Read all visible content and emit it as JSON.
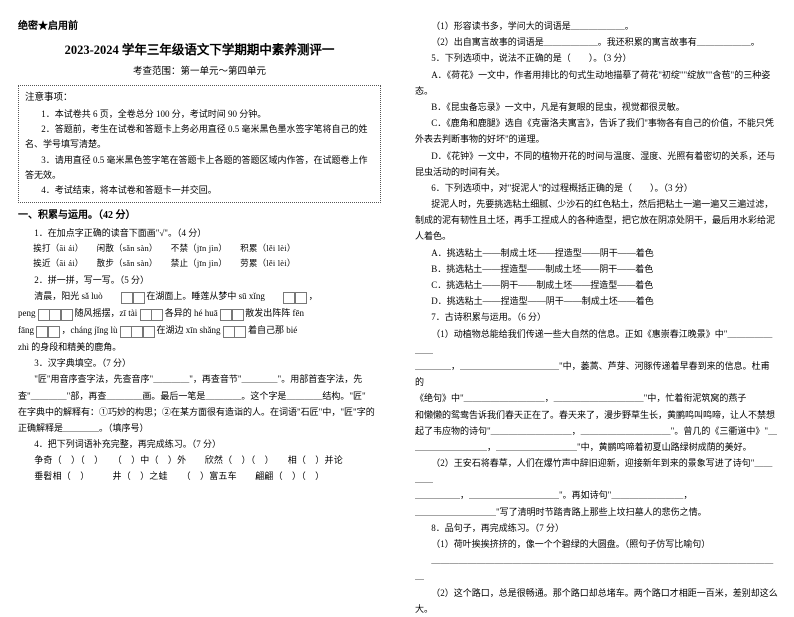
{
  "header": {
    "secret": "绝密★启用前"
  },
  "title": "2023-2024 学年三年级语文下学期期中素养测评一",
  "subtitle": "考查范围：第一单元～第四单元",
  "notice": {
    "title": "注意事项：",
    "items": [
      "1．本试卷共 6 页，全卷总分 100 分，考试时间 90 分钟。",
      "2．答题前，考生在试卷和答题卡上务必用直径 0.5 毫米黑色墨水签字笔将自己的姓名、学号填写清楚。",
      "3．请用直径 0.5 毫米黑色签字笔在答题卡上各题的答题区域内作答，在试题卷上作答无效。",
      "4．考试结束，将本试卷和答题卡一并交回。"
    ]
  },
  "section1": {
    "head": "一、积累与运用。（42 分）",
    "q1": {
      "title": "1．在加点字正确的读音下面画\"√\"。（4 分）",
      "row1": "挨打（āi  ái）　　闲散（sǎn  sàn）　　不禁（jīn  jìn）　　积累（lěi  lèi）",
      "row2": "挨近（āi  ái）　　散步（sǎn  sàn）　　禁止（jīn  jìn）　　劳累（lěi  lèi）"
    },
    "q2": {
      "title": "2．拼一拼，写一写。（5 分）",
      "l1a": "清晨，阳光 sǎ luò ",
      "l1b": " 在湖面上。睡莲从梦中 sū xǐng ",
      "l1c": "，",
      "l2a": "peng ",
      "l2b": " 随风摇摆，zī tài ",
      "l2c": " 各异的 hé huā ",
      "l2d": " 散发出阵阵 fēn",
      "l3a": "fāng ",
      "l3b": "，cháng jǐng lù ",
      "l3c": " 在湖边 xīn shǎng ",
      "l3d": " 着自己那 bié",
      "l4": "zhì 的身段和精美的鹿角。"
    },
    "q3": {
      "title": "3．汉字典填空。（7 分）",
      "l1": "\"匠\"用音序查字法，先查音序\"＿＿＿＿\"，再查音节\"＿＿＿＿\"。用部首查字法，先",
      "l2": "查\"＿＿＿＿\"部，再查＿＿＿＿画。最后一笔是＿＿＿＿。这个字是＿＿＿＿结构。\"匠\"",
      "l3": "在字典中的解释有：①巧妙的构思；②在某方面很有造诣的人。在词语\"石匠\"中，\"匠\"字的正确解释是＿＿＿＿。（填序号）"
    },
    "q4": {
      "title": "4．把下列词语补充完整，再完成练习。（7 分）",
      "row1": "争奇（　）（　）　　（　）中（　）外　　欣然（　）（　）　　相（　）并论",
      "row2": "垂髫相（　）　　　井（　）之蛙　　（　）富五车　　翩翩（　）（　）"
    }
  },
  "section1b": {
    "r1": "（1）形容读书多，学问大的词语是＿＿＿＿＿＿。",
    "r2": "（2）出自寓言故事的词语是＿＿＿＿＿＿。我还积累的寓言故事有＿＿＿＿＿＿。",
    "q5": {
      "title": "5．下列选项中，说法不正确的是（　　）。（3 分）",
      "a": "A．《荷花》一文中，作者用排比的句式生动地描摹了荷花\"初绽\"\"绽放\"\"含苞\"的三种姿态。",
      "b": "B．《昆虫备忘录》一文中，凡是有复眼的昆虫，视觉都很灵敏。",
      "c": "C．《鹿角和鹿腿》选自《克雷洛夫寓言》，告诉了我们\"事物各有自己的价值，不能只凭外表去判断事物的好坏\"的道理。",
      "d": "D．《花钟》一文中，不同的植物开花的时间与温度、湿度、光照有着密切的关系，还与昆虫活动的时间有关。"
    },
    "q6": {
      "title": "6．下列选项中，对\"捉泥人\"的过程概括正确的是（　　）。（3 分）",
      "intro": "捉泥人时，先要挑选粘土细腻、少沙石的红色粘土，然后把粘土一遍一遍又三遍过滤，制成的泥有韧性且土坯，再手工捏成人的各种造型，把它放在阴凉处阴干，最后用水彩给泥人着色。",
      "a": "A．挑选粘土——制成土坯——捏造型——阴干——着色",
      "b": "B．挑选粘土——捏造型——制成土坯——阴干——着色",
      "c": "C．挑选粘土——阴干——制成土坯——捏造型——着色",
      "d": "D．挑选粘土——捏造型——阴干——制成土坯——着色"
    },
    "q7": {
      "title": "7．古诗积累与运用。（6 分）",
      "l1": "（1）动植物总能给我们传递一些大自然的信息。正如《惠崇春江晚景》中\"＿＿＿＿＿＿＿",
      "l2": "＿＿＿＿，＿＿＿＿＿＿＿＿＿＿＿\"中，蒌蒿、芦芽、河豚传递着早春到来的信息。杜甫的",
      "l3": "《绝句》中\"＿＿＿＿＿＿＿＿＿，＿＿＿＿＿＿＿＿＿＿\"中，忙着衔泥筑窝的燕子",
      "l4": "和懒懒的鸳鸯告诉我们春天正在了。春天来了，漫步野草生长，黄鹂鸣叫鸣啼，让人不禁想起了韦应物的诗句\"＿＿＿＿＿＿＿＿＿，＿＿＿＿＿＿＿＿＿＿\"。曾几的《三衢道中》\"＿",
      "l5": "＿＿＿＿＿＿＿＿，＿＿＿＿＿＿＿＿＿\"中，黄鹂鸣啼着初夏山路绿树成荫的美好。",
      "l6": "（2）王安石将春草，人们在爆竹声中辞旧迎新，迎接新年到来的景象写进了诗句\"＿＿＿＿",
      "l7": "＿＿＿＿＿，＿＿＿＿＿＿＿＿＿＿\"。再如诗句\"＿＿＿＿＿＿＿＿，",
      "l8": "＿＿＿＿＿＿＿＿＿\"写了清明时节踏青路上那些上坟扫墓人的悲伤之情。"
    },
    "q8": {
      "title": "8．品句子，再完成练习。（7 分）",
      "l1": "（1）荷叶挨挨挤挤的，像一个个碧绿的大圆盘。（照句子仿写比喻句）",
      "l2": "＿＿＿＿＿＿＿＿＿＿＿＿＿＿＿＿＿＿＿＿＿＿＿＿＿＿＿＿＿＿＿＿＿＿＿＿＿＿＿",
      "l3": "（2）这个路口，总是很畅通。那个路口却总堵车。两个路口才相距一百米，差别却这么大。"
    }
  }
}
